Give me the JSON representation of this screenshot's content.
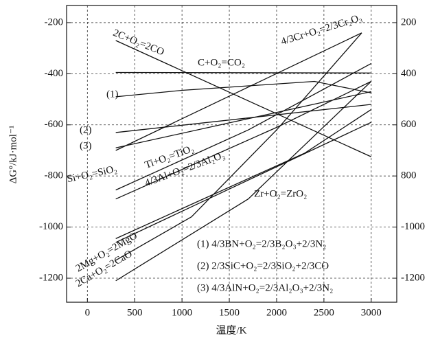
{
  "chart_data": {
    "type": "line",
    "ylabel": "ΔG°/kJ·mol⁻¹",
    "xlabel": "温度/K",
    "xlim": [
      -220,
      3270
    ],
    "ylim": [
      -1294,
      -133
    ],
    "y2lim": [
      -1294,
      -133
    ],
    "xticks": [
      0,
      500,
      1000,
      1500,
      2000,
      2500,
      3000
    ],
    "yticks": [
      -200,
      -400,
      -600,
      -800,
      -1000,
      -1200
    ],
    "y2ticks": [
      {
        "value": -200,
        "label": "200"
      },
      {
        "value": -400,
        "label": "400"
      },
      {
        "value": -600,
        "label": "600"
      },
      {
        "value": -800,
        "label": "800"
      },
      -1000,
      -1200
    ],
    "grid": true,
    "series": [
      {
        "name": "2C+O₂=2CO",
        "color": "#111",
        "x": [
          300,
          3000
        ],
        "values": [
          -270,
          -725
        ]
      },
      {
        "name": "C+O₂=CO₂",
        "color": "#111",
        "x": [
          300,
          3000
        ],
        "values": [
          -395,
          -397
        ]
      },
      {
        "name": "4/3Cr+O₂=2/3Cr₂O₃",
        "color": "#111",
        "x": [
          300,
          2900
        ],
        "values": [
          -700,
          -240
        ]
      },
      {
        "name": "(1)",
        "color": "#111",
        "x": [
          300,
          1000,
          2400,
          3000
        ],
        "values": [
          -490,
          -465,
          -430,
          -475
        ]
      },
      {
        "name": "(2)",
        "color": "#111",
        "x": [
          300,
          3000
        ],
        "values": [
          -630,
          -520
        ]
      },
      {
        "name": "(3)",
        "color": "#111",
        "x": [
          300,
          3000
        ],
        "values": [
          -690,
          -470
        ]
      },
      {
        "name": "Ti+O₂=TiO₂",
        "color": "#111",
        "x": [
          300,
          2000,
          3000
        ],
        "values": [
          -890,
          -610,
          -430
        ]
      },
      {
        "name": "Si+O₂=SiO₂",
        "color": "#111",
        "x": [
          300,
          1700,
          3000
        ],
        "values": [
          -855,
          -620,
          -360
        ]
      },
      {
        "name": "4/3Al+O₂=2/3Al₂O₃",
        "color": "#111",
        "x": [
          300,
          2300,
          3000
        ],
        "values": [
          -1045,
          -710,
          -540
        ]
      },
      {
        "name": "Zr+O₂=ZrO₂",
        "color": "#111",
        "x": [
          300,
          3000
        ],
        "values": [
          -1060,
          -590
        ]
      },
      {
        "name": "2Mg+O₂=2MgO",
        "color": "#111",
        "x": [
          300,
          1100,
          2000,
          2900
        ],
        "values": [
          -1130,
          -960,
          -620,
          -240
        ]
      },
      {
        "name": "2Ca+O₂=2CaO",
        "color": "#111",
        "x": [
          300,
          1700,
          3000
        ],
        "values": [
          -1210,
          -890,
          -430
        ]
      }
    ],
    "notes": [
      "(1) 4/3BN+O₂=2/3B₂O₃+2/3N₂",
      "(2) 2/3SiC+O₂=2/3SiO₂+2/3CO",
      "(3) 4/3AlN+O₂=2/3Al₂O₃+2/3N₂"
    ]
  }
}
